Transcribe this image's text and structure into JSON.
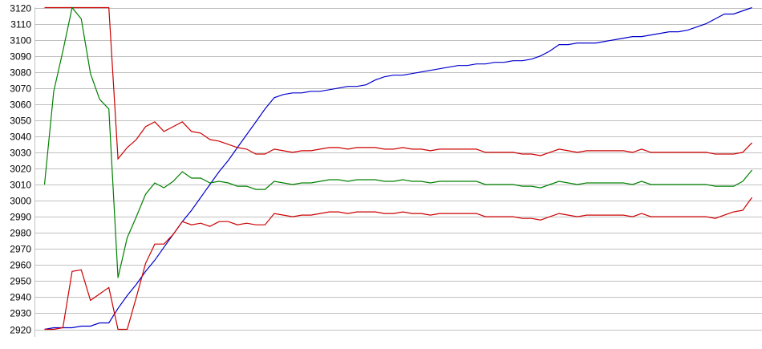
{
  "chart_data": {
    "type": "line",
    "title": "",
    "xlabel": "",
    "ylabel": "",
    "ylim": [
      2920,
      3120
    ],
    "yticks": [
      2920,
      2930,
      2940,
      2950,
      2960,
      2970,
      2980,
      2990,
      3000,
      3010,
      3020,
      3030,
      3040,
      3050,
      3060,
      3070,
      3080,
      3090,
      3100,
      3110,
      3120
    ],
    "grid": "horizontal",
    "legend": "none",
    "series": [
      {
        "color": "#0000cc",
        "values": [
          2920,
          2921,
          2921,
          2921,
          2922,
          2922,
          2924,
          2924,
          2933,
          2941,
          2948,
          2956,
          2963,
          2971,
          2979,
          2987,
          2994,
          3002,
          3010,
          3018,
          3025,
          3033,
          3041,
          3049,
          3057,
          3064,
          3066,
          3067,
          3067,
          3068,
          3068,
          3069,
          3070,
          3071,
          3071,
          3072,
          3075,
          3077,
          3078,
          3078,
          3079,
          3080,
          3081,
          3082,
          3083,
          3084,
          3084,
          3085,
          3085,
          3086,
          3086,
          3087,
          3087,
          3088,
          3090,
          3093,
          3097,
          3097,
          3098,
          3098,
          3098,
          3099,
          3100,
          3101,
          3102,
          3102,
          3103,
          3104,
          3105,
          3105,
          3106,
          3108,
          3110,
          3113,
          3116,
          3116,
          3118,
          3120
        ]
      },
      {
        "color": "#cc0000",
        "values": [
          3120,
          3120,
          3120,
          3120,
          3120,
          3120,
          3120,
          3120,
          3026,
          3033,
          3038,
          3046,
          3049,
          3043,
          3046,
          3049,
          3043,
          3042,
          3038,
          3037,
          3035,
          3033,
          3032,
          3029,
          3029,
          3032,
          3031,
          3030,
          3031,
          3031,
          3032,
          3033,
          3033,
          3032,
          3033,
          3033,
          3033,
          3032,
          3032,
          3033,
          3032,
          3032,
          3031,
          3032,
          3032,
          3032,
          3032,
          3032,
          3030,
          3030,
          3030,
          3030,
          3029,
          3029,
          3028,
          3030,
          3032,
          3031,
          3030,
          3031,
          3031,
          3031,
          3031,
          3031,
          3030,
          3032,
          3030,
          3030,
          3030,
          3030,
          3030,
          3030,
          3030,
          3029,
          3029,
          3029,
          3030,
          3036
        ]
      },
      {
        "color": "#008000",
        "values": [
          3010,
          3068,
          3093,
          3120,
          3113,
          3079,
          3063,
          3057,
          2952,
          2977,
          2990,
          3004,
          3011,
          3008,
          3012,
          3018,
          3014,
          3014,
          3011,
          3012,
          3011,
          3009,
          3009,
          3007,
          3007,
          3012,
          3011,
          3010,
          3011,
          3011,
          3012,
          3013,
          3013,
          3012,
          3013,
          3013,
          3013,
          3012,
          3012,
          3013,
          3012,
          3012,
          3011,
          3012,
          3012,
          3012,
          3012,
          3012,
          3010,
          3010,
          3010,
          3010,
          3009,
          3009,
          3008,
          3010,
          3012,
          3011,
          3010,
          3011,
          3011,
          3011,
          3011,
          3011,
          3010,
          3012,
          3010,
          3010,
          3010,
          3010,
          3010,
          3010,
          3010,
          3009,
          3009,
          3009,
          3012,
          3019
        ]
      },
      {
        "color": "#cc0000",
        "values": [
          2920,
          2920,
          2921,
          2956,
          2957,
          2938,
          2942,
          2946,
          2920,
          2920,
          2940,
          2961,
          2973,
          2973,
          2979,
          2987,
          2985,
          2986,
          2984,
          2987,
          2987,
          2985,
          2986,
          2985,
          2985,
          2992,
          2991,
          2990,
          2991,
          2991,
          2992,
          2993,
          2993,
          2992,
          2993,
          2993,
          2993,
          2992,
          2992,
          2993,
          2992,
          2992,
          2991,
          2992,
          2992,
          2992,
          2992,
          2992,
          2990,
          2990,
          2990,
          2990,
          2989,
          2989,
          2988,
          2990,
          2992,
          2991,
          2990,
          2991,
          2991,
          2991,
          2991,
          2991,
          2990,
          2992,
          2990,
          2990,
          2990,
          2990,
          2990,
          2990,
          2990,
          2989,
          2991,
          2993,
          2994,
          3002
        ]
      }
    ],
    "gridColor": "#c0c0c0"
  }
}
